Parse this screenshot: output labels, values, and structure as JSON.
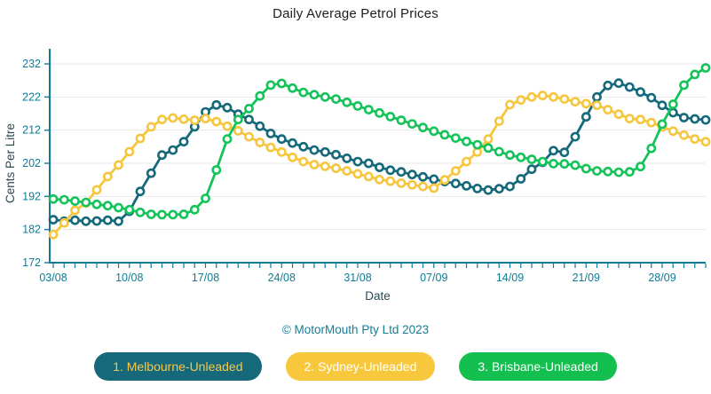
{
  "title": "Daily Average Petrol Prices",
  "footer": "© MotorMouth Pty Ltd 2023",
  "legend": [
    {
      "label": "1. Melbourne-Unleaded",
      "bg": "#16697A",
      "fg": "#F5C84C"
    },
    {
      "label": "2. Sydney-Unleaded",
      "bg": "#F8C83C",
      "fg": "#FFFFFF"
    },
    {
      "label": "3. Brisbane-Unleaded",
      "bg": "#12BF4F",
      "fg": "#FFFFFF"
    }
  ],
  "chart_data": {
    "type": "line",
    "title": "Daily Average Petrol Prices",
    "xlabel": "Date",
    "ylabel": "Cents Per Litre",
    "ylim": [
      172,
      232
    ],
    "y_ticks": [
      172,
      182,
      192,
      202,
      212,
      222,
      232
    ],
    "x_start_date": "03/08",
    "x_tick_labels": [
      "03/08",
      "10/08",
      "17/08",
      "24/08",
      "31/08",
      "07/09",
      "14/09",
      "21/09",
      "28/09"
    ],
    "x_tick_positions": [
      0,
      7,
      14,
      21,
      28,
      35,
      42,
      49,
      56
    ],
    "days_total": 61,
    "grid": true,
    "legend_position": "bottom",
    "axis_color": "#0E7C96",
    "grid_color": "#E7E7E7",
    "axis_title_color": "#2C4A53",
    "marker": {
      "radius": 4.1,
      "stroke_width": 2.6,
      "fill": "#FFFFFF"
    },
    "series": [
      {
        "name": "Melbourne-Unleaded",
        "color": "#16697A",
        "values": [
          185,
          184.5,
          184.8,
          184.5,
          184.6,
          184.8,
          184.5,
          187.5,
          193.5,
          199,
          204.5,
          206,
          208.5,
          213,
          217.5,
          219.6,
          218.8,
          216.8,
          215.2,
          213.2,
          211,
          209.3,
          208.1,
          207,
          206,
          205.4,
          204.6,
          203.5,
          202.5,
          202,
          200.8,
          199.9,
          199.4,
          198.6,
          197.9,
          197.2,
          196.5,
          195.9,
          195.2,
          194.4,
          193.9,
          194.3,
          195,
          197.3,
          200.2,
          202.3,
          205.8,
          205.3,
          210,
          216,
          222,
          225.5,
          226.2,
          225,
          223.5,
          221.8,
          219.5,
          217.3,
          215.8,
          215.4,
          215.1
        ]
      },
      {
        "name": "Sydney-Unleaded",
        "color": "#F6C63F",
        "values": [
          180.5,
          184,
          187.8,
          190,
          194,
          198,
          201.5,
          205.5,
          209.5,
          213,
          215.2,
          215.7,
          215.3,
          215,
          215.5,
          214.6,
          213.2,
          211.8,
          210,
          208.3,
          206.8,
          205.4,
          203.8,
          202.5,
          201.6,
          201.1,
          200.5,
          199.7,
          198.8,
          198,
          197.1,
          196.6,
          196,
          195.5,
          195,
          194.5,
          197,
          199.7,
          202.5,
          205.4,
          209.3,
          214.7,
          219.7,
          221.1,
          222,
          222.5,
          222,
          221.4,
          220.6,
          220,
          219.5,
          218.2,
          216.8,
          215.5,
          215.2,
          214.3,
          213,
          211.7,
          210.5,
          209.3,
          208.5
        ]
      },
      {
        "name": "Brisbane-Unleaded",
        "color": "#15C35A",
        "values": [
          191.2,
          191,
          190.6,
          190.2,
          189.6,
          189.2,
          188.6,
          188,
          187.2,
          186.6,
          186.5,
          186.5,
          186.6,
          188,
          191.4,
          200,
          209.3,
          215.2,
          218.5,
          222.3,
          225.6,
          226.1,
          224.7,
          223.4,
          222.7,
          222,
          221.4,
          220.4,
          219.3,
          218.2,
          217.2,
          216.1,
          215,
          213.9,
          212.8,
          211.7,
          210.6,
          209.6,
          208.6,
          207.6,
          206.6,
          205.5,
          204.5,
          203.8,
          203.2,
          202.5,
          201.9,
          201.8,
          201.4,
          200.4,
          199.7,
          199.5,
          199.3,
          199.4,
          201,
          206.5,
          213.8,
          219.8,
          225.6,
          228.8,
          230.8
        ]
      }
    ]
  }
}
